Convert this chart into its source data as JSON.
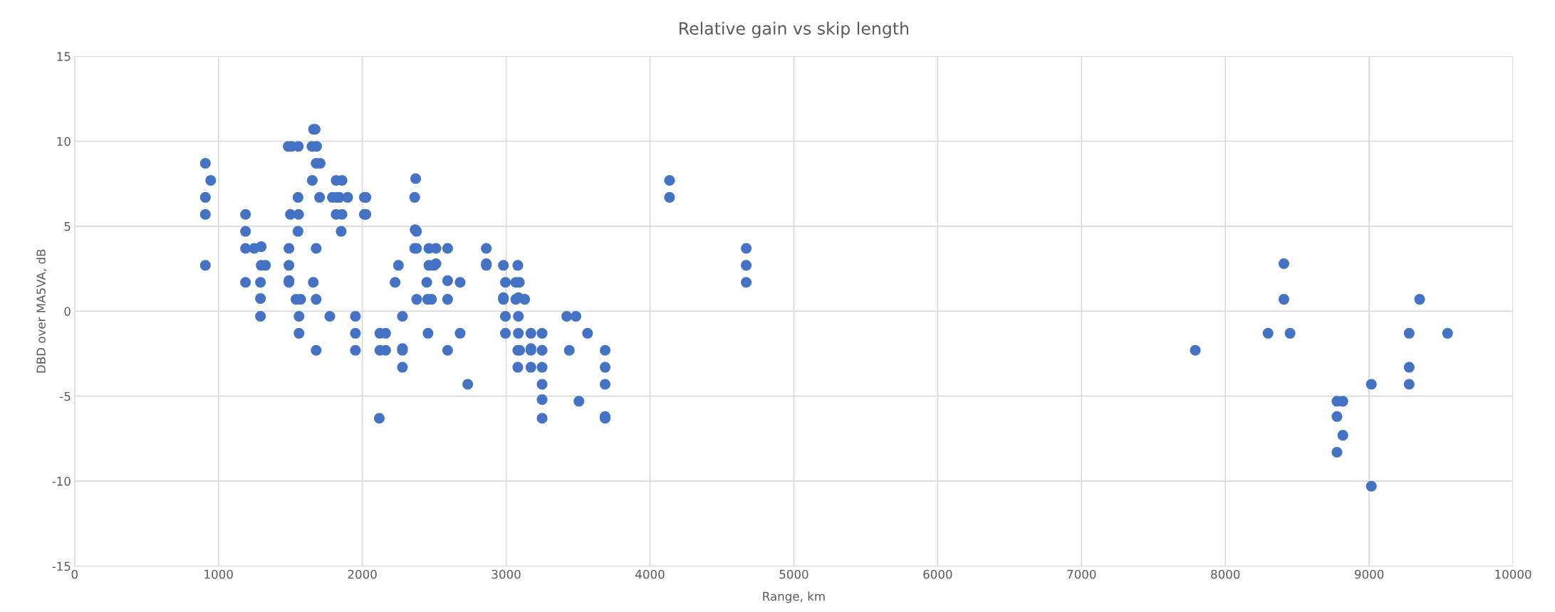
{
  "chart_data": {
    "type": "scatter",
    "title": "Relative gain vs skip length",
    "xlabel": "Range, km",
    "ylabel": "DBD over MA5VA, dB",
    "xlim": [
      0,
      10000
    ],
    "xticks": [
      0,
      1000,
      2000,
      3000,
      4000,
      5000,
      6000,
      7000,
      8000,
      9000,
      10000
    ],
    "ylim": [
      -15,
      15
    ],
    "yticks": [
      -15,
      -10,
      -5,
      0,
      5,
      10,
      15
    ],
    "grid": true,
    "marker": "circle",
    "series": [
      {
        "color": "#4472c4",
        "x": [
          909,
          946,
          909,
          909,
          909,
          1188,
          1188,
          1188,
          1248,
          1297,
          1297,
          1327,
          1188,
          1292,
          1292,
          1292,
          1485,
          1509,
          1555,
          1661,
          1672,
          1650,
          1682,
          1679,
          1707,
          1652,
          1553,
          1703,
          1500,
          1557,
          1553,
          1490,
          1679,
          1490,
          1490,
          1490,
          1659,
          1539,
          1571,
          1679,
          1560,
          1560,
          1679,
          1774,
          1952,
          1952,
          1952,
          1818,
          1859,
          1792,
          1823,
          1841,
          1898,
          1818,
          1859,
          1853,
          2014,
          2025,
          2014,
          2025,
          2122,
          2162,
          2122,
          2162,
          2118,
          2251,
          2228,
          2279,
          2279,
          2279,
          2279,
          2371,
          2364,
          2367,
          2377,
          2364,
          2377,
          2463,
          2512,
          2593,
          2463,
          2512,
          2498,
          2448,
          2593,
          2680,
          2378,
          2454,
          2481,
          2593,
          2457,
          2680,
          2593,
          2733,
          2862,
          2862,
          2862,
          2981,
          3081,
          2995,
          3067,
          3092,
          2981,
          2981,
          3067,
          3085,
          3129,
          2995,
          3085,
          2995,
          3085,
          3172,
          3250,
          3081,
          3094,
          3172,
          3172,
          3250,
          3081,
          3172,
          3250,
          3250,
          3250,
          3250,
          3421,
          3485,
          3566,
          3439,
          3506,
          3688,
          3688,
          3688,
          3688,
          3688,
          4136,
          4136,
          4669,
          4669,
          4669,
          7791,
          8407,
          8407,
          8297,
          8450,
          9351,
          9278,
          9545,
          9278,
          9278,
          9015,
          8776,
          8817,
          8776,
          8817,
          8776,
          9015
        ],
        "values": [
          8.7,
          7.7,
          6.7,
          5.7,
          2.7,
          5.7,
          4.7,
          3.7,
          3.7,
          3.8,
          2.7,
          2.7,
          1.7,
          1.7,
          0.75,
          -0.3,
          9.7,
          9.7,
          9.7,
          10.7,
          10.7,
          9.7,
          9.7,
          8.7,
          8.7,
          7.7,
          6.7,
          6.7,
          5.7,
          5.7,
          4.7,
          3.7,
          3.7,
          2.7,
          1.8,
          1.7,
          1.7,
          0.7,
          0.7,
          0.7,
          -0.3,
          -1.3,
          -2.3,
          -0.3,
          -0.3,
          -1.3,
          -2.3,
          7.7,
          7.7,
          6.7,
          6.7,
          6.7,
          6.7,
          5.7,
          5.7,
          4.7,
          6.7,
          6.7,
          5.7,
          5.7,
          -1.3,
          -1.3,
          -2.3,
          -2.3,
          -6.3,
          2.7,
          1.7,
          -0.3,
          -2.2,
          -2.3,
          -3.3,
          7.8,
          6.7,
          4.8,
          4.7,
          3.7,
          3.7,
          3.7,
          3.7,
          3.7,
          2.7,
          2.8,
          2.7,
          1.7,
          1.8,
          1.7,
          0.7,
          0.7,
          0.7,
          0.7,
          -1.3,
          -1.3,
          -2.3,
          -4.3,
          3.7,
          2.8,
          2.7,
          2.7,
          2.7,
          1.7,
          1.7,
          1.7,
          0.8,
          0.7,
          0.7,
          0.8,
          0.7,
          -0.3,
          -0.3,
          -1.3,
          -1.3,
          -1.3,
          -1.3,
          -2.3,
          -2.3,
          -2.2,
          -2.3,
          -2.3,
          -3.3,
          -3.3,
          -3.3,
          -4.3,
          -5.2,
          -6.3,
          -0.3,
          -0.3,
          -1.3,
          -2.3,
          -5.3,
          -2.3,
          -3.3,
          -4.3,
          -6.2,
          -6.3,
          7.7,
          6.7,
          3.7,
          2.7,
          1.7,
          -2.3,
          2.8,
          0.7,
          -1.3,
          -1.3,
          0.7,
          -1.3,
          -1.3,
          -3.3,
          -4.3,
          -4.3,
          -5.3,
          -5.3,
          -6.2,
          -7.3,
          -8.3,
          -10.3
        ]
      }
    ]
  }
}
